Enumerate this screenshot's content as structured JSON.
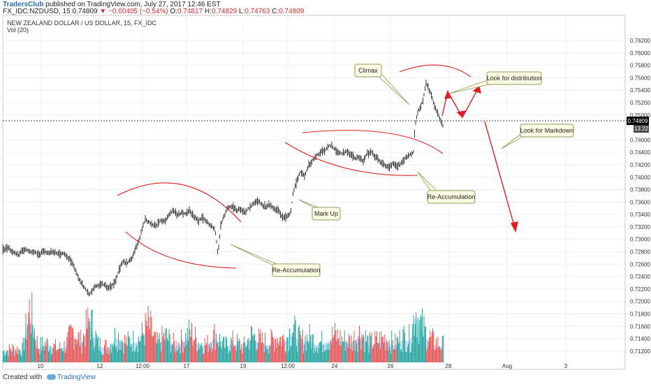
{
  "header": {
    "author": "TradersClub",
    "published": "published on TradingView.com, July 27, 2017 12:46 EST",
    "symbol": "FX_IDC:NZDUSD, 15",
    "last": "0.74809",
    "change": "−0.00405 (−0.54%)",
    "o_label": "O:",
    "o": "0.74817",
    "h_label": "H:",
    "h": "0.74829",
    "l_label": "L:",
    "l": "0.74763",
    "c_label": "C:",
    "c": "0.74809"
  },
  "legend": {
    "title": "NEW ZEALAND DOLLAR / US DOLLAR, 15, FX_IDC",
    "indicator": "Vol (20)"
  },
  "price_badge": "0.74809",
  "time_badge": "13:22",
  "footer": {
    "created_with": "Created with",
    "brand": "TradingView"
  },
  "colors": {
    "candle": "#1e1e1e",
    "annotation": "#e02020",
    "volume_up": "#26a69a",
    "volume_down": "#ef5350",
    "volume_ma": "#a9d3f5",
    "callout_bg": "#fdfde6",
    "callout_border": "#8a9a5a"
  },
  "chart_data": {
    "type": "candlestick",
    "y_ticks": [
      "0.76200",
      "0.76000",
      "0.75800",
      "0.75600",
      "0.75400",
      "0.75200",
      "0.75000",
      "0.74600",
      "0.74400",
      "0.74200",
      "0.74000",
      "0.73800",
      "0.73600",
      "0.73400",
      "0.73200",
      "0.73000",
      "0.72800",
      "0.72600",
      "0.72400",
      "0.72200",
      "0.72000",
      "0.71800",
      "0.71600",
      "0.71400",
      "0.71200"
    ],
    "x_ticks": [
      "10",
      "12",
      "12:00",
      "17",
      "19",
      "12:00",
      "24",
      "26",
      "28",
      "Aug",
      "3"
    ],
    "ylim": [
      0.7112,
      0.7638
    ],
    "price_path": [
      {
        "x": 0,
        "y": 0.7284
      },
      {
        "x": 8,
        "y": 0.7286
      },
      {
        "x": 16,
        "y": 0.7278
      },
      {
        "x": 22,
        "y": 0.7274
      },
      {
        "x": 28,
        "y": 0.7282
      },
      {
        "x": 34,
        "y": 0.7283
      },
      {
        "x": 40,
        "y": 0.728
      },
      {
        "x": 46,
        "y": 0.728
      },
      {
        "x": 52,
        "y": 0.7274
      },
      {
        "x": 58,
        "y": 0.7281
      },
      {
        "x": 64,
        "y": 0.7279
      },
      {
        "x": 70,
        "y": 0.728
      },
      {
        "x": 76,
        "y": 0.7278
      },
      {
        "x": 82,
        "y": 0.7276
      },
      {
        "x": 88,
        "y": 0.7277
      },
      {
        "x": 94,
        "y": 0.727
      },
      {
        "x": 100,
        "y": 0.7262
      },
      {
        "x": 106,
        "y": 0.7244
      },
      {
        "x": 112,
        "y": 0.723
      },
      {
        "x": 118,
        "y": 0.722
      },
      {
        "x": 124,
        "y": 0.721
      },
      {
        "x": 130,
        "y": 0.7222
      },
      {
        "x": 136,
        "y": 0.7226
      },
      {
        "x": 142,
        "y": 0.7228
      },
      {
        "x": 148,
        "y": 0.7224
      },
      {
        "x": 154,
        "y": 0.7222
      },
      {
        "x": 160,
        "y": 0.723
      },
      {
        "x": 166,
        "y": 0.725
      },
      {
        "x": 172,
        "y": 0.7264
      },
      {
        "x": 178,
        "y": 0.7262
      },
      {
        "x": 184,
        "y": 0.7268
      },
      {
        "x": 190,
        "y": 0.7285
      },
      {
        "x": 196,
        "y": 0.7302
      },
      {
        "x": 200,
        "y": 0.7318
      },
      {
        "x": 204,
        "y": 0.7332
      },
      {
        "x": 208,
        "y": 0.7328
      },
      {
        "x": 214,
        "y": 0.7324
      },
      {
        "x": 220,
        "y": 0.7322
      },
      {
        "x": 226,
        "y": 0.733
      },
      {
        "x": 232,
        "y": 0.7328
      },
      {
        "x": 238,
        "y": 0.734
      },
      {
        "x": 244,
        "y": 0.7346
      },
      {
        "x": 250,
        "y": 0.7338
      },
      {
        "x": 256,
        "y": 0.7344
      },
      {
        "x": 262,
        "y": 0.734
      },
      {
        "x": 268,
        "y": 0.7346
      },
      {
        "x": 274,
        "y": 0.7336
      },
      {
        "x": 280,
        "y": 0.733
      },
      {
        "x": 286,
        "y": 0.7334
      },
      {
        "x": 292,
        "y": 0.7328
      },
      {
        "x": 298,
        "y": 0.7322
      },
      {
        "x": 304,
        "y": 0.7316
      },
      {
        "x": 308,
        "y": 0.7275
      },
      {
        "x": 312,
        "y": 0.7322
      },
      {
        "x": 316,
        "y": 0.7336
      },
      {
        "x": 322,
        "y": 0.735
      },
      {
        "x": 328,
        "y": 0.7354
      },
      {
        "x": 334,
        "y": 0.7346
      },
      {
        "x": 340,
        "y": 0.7348
      },
      {
        "x": 346,
        "y": 0.7342
      },
      {
        "x": 352,
        "y": 0.735
      },
      {
        "x": 358,
        "y": 0.7356
      },
      {
        "x": 364,
        "y": 0.7362
      },
      {
        "x": 370,
        "y": 0.7358
      },
      {
        "x": 376,
        "y": 0.7352
      },
      {
        "x": 382,
        "y": 0.7356
      },
      {
        "x": 388,
        "y": 0.735
      },
      {
        "x": 394,
        "y": 0.7346
      },
      {
        "x": 400,
        "y": 0.7336
      },
      {
        "x": 406,
        "y": 0.7334
      },
      {
        "x": 412,
        "y": 0.7342
      },
      {
        "x": 416,
        "y": 0.7376
      },
      {
        "x": 420,
        "y": 0.739
      },
      {
        "x": 426,
        "y": 0.7408
      },
      {
        "x": 432,
        "y": 0.7402
      },
      {
        "x": 438,
        "y": 0.7418
      },
      {
        "x": 444,
        "y": 0.7428
      },
      {
        "x": 450,
        "y": 0.7436
      },
      {
        "x": 456,
        "y": 0.744
      },
      {
        "x": 462,
        "y": 0.7444
      },
      {
        "x": 468,
        "y": 0.7452
      },
      {
        "x": 474,
        "y": 0.7446
      },
      {
        "x": 480,
        "y": 0.744
      },
      {
        "x": 486,
        "y": 0.7438
      },
      {
        "x": 492,
        "y": 0.7442
      },
      {
        "x": 498,
        "y": 0.7436
      },
      {
        "x": 504,
        "y": 0.743
      },
      {
        "x": 510,
        "y": 0.7432
      },
      {
        "x": 516,
        "y": 0.7426
      },
      {
        "x": 522,
        "y": 0.7438
      },
      {
        "x": 528,
        "y": 0.744
      },
      {
        "x": 534,
        "y": 0.7432
      },
      {
        "x": 540,
        "y": 0.7426
      },
      {
        "x": 546,
        "y": 0.742
      },
      {
        "x": 552,
        "y": 0.7416
      },
      {
        "x": 558,
        "y": 0.7422
      },
      {
        "x": 564,
        "y": 0.7416
      },
      {
        "x": 570,
        "y": 0.7422
      },
      {
        "x": 576,
        "y": 0.743
      },
      {
        "x": 582,
        "y": 0.7436
      },
      {
        "x": 588,
        "y": 0.744
      },
      {
        "x": 590,
        "y": 0.7482
      },
      {
        "x": 594,
        "y": 0.7506
      },
      {
        "x": 598,
        "y": 0.7512
      },
      {
        "x": 602,
        "y": 0.7526
      },
      {
        "x": 606,
        "y": 0.7552
      },
      {
        "x": 610,
        "y": 0.754
      },
      {
        "x": 614,
        "y": 0.753
      },
      {
        "x": 618,
        "y": 0.7516
      },
      {
        "x": 622,
        "y": 0.7504
      },
      {
        "x": 626,
        "y": 0.7494
      },
      {
        "x": 630,
        "y": 0.7481
      }
    ],
    "volume_ylim": [
      0,
      120
    ],
    "volume": [
      {
        "x": 0,
        "v": 25
      },
      {
        "x": 14,
        "v": 30
      },
      {
        "x": 28,
        "v": 28
      },
      {
        "x": 38,
        "v": 120
      },
      {
        "x": 50,
        "v": 35
      },
      {
        "x": 64,
        "v": 42
      },
      {
        "x": 78,
        "v": 30
      },
      {
        "x": 90,
        "v": 38
      },
      {
        "x": 100,
        "v": 70
      },
      {
        "x": 112,
        "v": 45
      },
      {
        "x": 124,
        "v": 95
      },
      {
        "x": 136,
        "v": 40
      },
      {
        "x": 150,
        "v": 34
      },
      {
        "x": 162,
        "v": 60
      },
      {
        "x": 176,
        "v": 44
      },
      {
        "x": 186,
        "v": 48
      },
      {
        "x": 196,
        "v": 52
      },
      {
        "x": 208,
        "v": 85
      },
      {
        "x": 220,
        "v": 40
      },
      {
        "x": 232,
        "v": 58
      },
      {
        "x": 246,
        "v": 38
      },
      {
        "x": 258,
        "v": 50
      },
      {
        "x": 268,
        "v": 66
      },
      {
        "x": 280,
        "v": 44
      },
      {
        "x": 292,
        "v": 40
      },
      {
        "x": 304,
        "v": 62
      },
      {
        "x": 316,
        "v": 36
      },
      {
        "x": 330,
        "v": 46
      },
      {
        "x": 344,
        "v": 34
      },
      {
        "x": 356,
        "v": 60
      },
      {
        "x": 368,
        "v": 48
      },
      {
        "x": 380,
        "v": 42
      },
      {
        "x": 392,
        "v": 56
      },
      {
        "x": 404,
        "v": 50
      },
      {
        "x": 414,
        "v": 75
      },
      {
        "x": 426,
        "v": 46
      },
      {
        "x": 438,
        "v": 56
      },
      {
        "x": 450,
        "v": 42
      },
      {
        "x": 462,
        "v": 48
      },
      {
        "x": 474,
        "v": 60
      },
      {
        "x": 486,
        "v": 50
      },
      {
        "x": 498,
        "v": 46
      },
      {
        "x": 512,
        "v": 66
      },
      {
        "x": 524,
        "v": 42
      },
      {
        "x": 536,
        "v": 48
      },
      {
        "x": 548,
        "v": 54
      },
      {
        "x": 560,
        "v": 40
      },
      {
        "x": 572,
        "v": 56
      },
      {
        "x": 584,
        "v": 52
      },
      {
        "x": 590,
        "v": 120
      },
      {
        "x": 596,
        "v": 88
      },
      {
        "x": 606,
        "v": 60
      },
      {
        "x": 618,
        "v": 44
      },
      {
        "x": 630,
        "v": 38
      }
    ],
    "annotations": [
      {
        "id": "climax",
        "text": "Climax"
      },
      {
        "id": "look-distribution",
        "text": "Look for distribution"
      },
      {
        "id": "look-markdown",
        "text": "Look for Markdown"
      },
      {
        "id": "re-accumulation-1",
        "text": "Re-Accumulation"
      },
      {
        "id": "mark-up",
        "text": "Mark Up"
      },
      {
        "id": "re-accumulation-2",
        "text": "Re-Accumulation"
      }
    ]
  }
}
